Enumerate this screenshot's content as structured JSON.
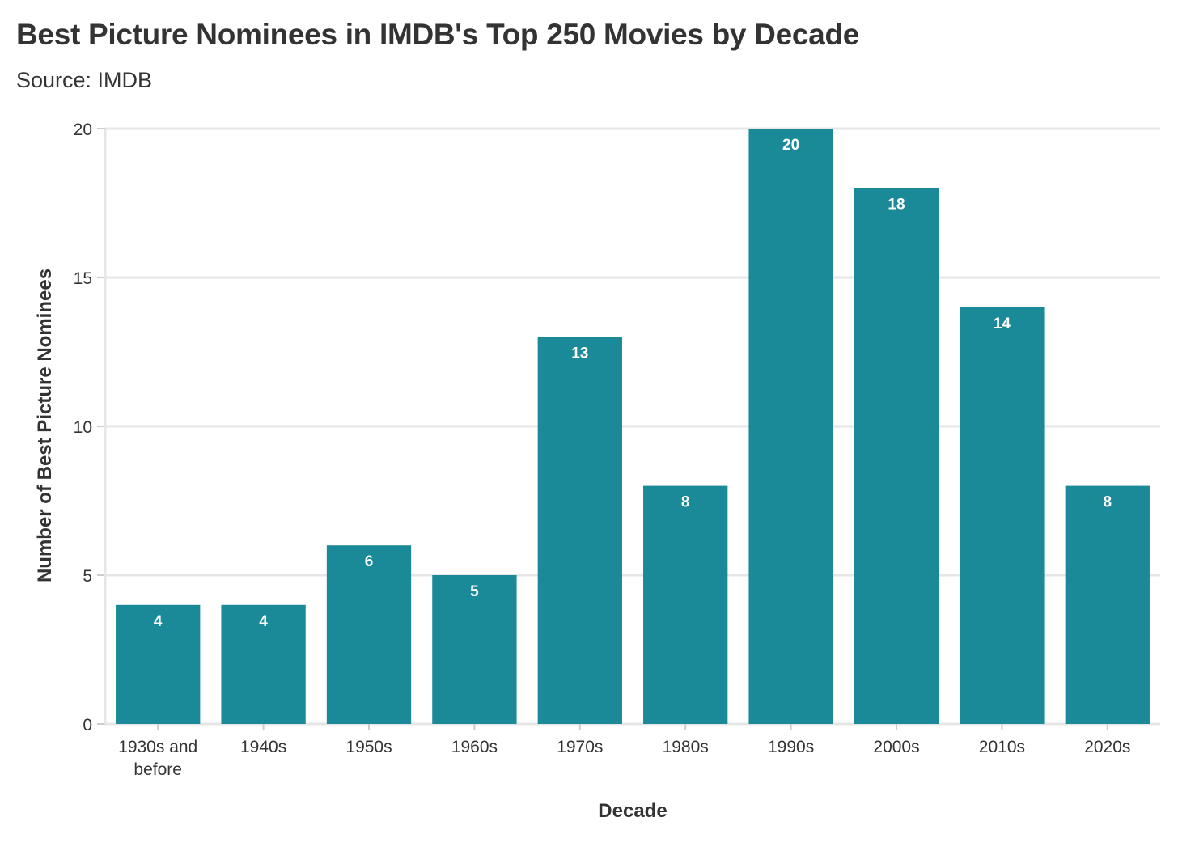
{
  "chart_data": {
    "type": "bar",
    "title": "Best Picture Nominees in IMDB's Top 250 Movies by Decade",
    "subtitle": "Source: IMDB",
    "xlabel": "Decade",
    "ylabel": "Number of Best Picture Nominees",
    "categories": [
      [
        "1930s and",
        "before"
      ],
      [
        "1940s"
      ],
      [
        "1950s"
      ],
      [
        "1960s"
      ],
      [
        "1970s"
      ],
      [
        "1980s"
      ],
      [
        "1990s"
      ],
      [
        "2000s"
      ],
      [
        "2010s"
      ],
      [
        "2020s"
      ]
    ],
    "values": [
      4,
      4,
      6,
      5,
      13,
      8,
      20,
      18,
      14,
      8
    ],
    "ylim": [
      0,
      20
    ],
    "yticks": [
      0,
      5,
      10,
      15,
      20
    ],
    "grid": true,
    "data_labels": true,
    "bar_color": "#1b8a98",
    "legend": "none"
  }
}
